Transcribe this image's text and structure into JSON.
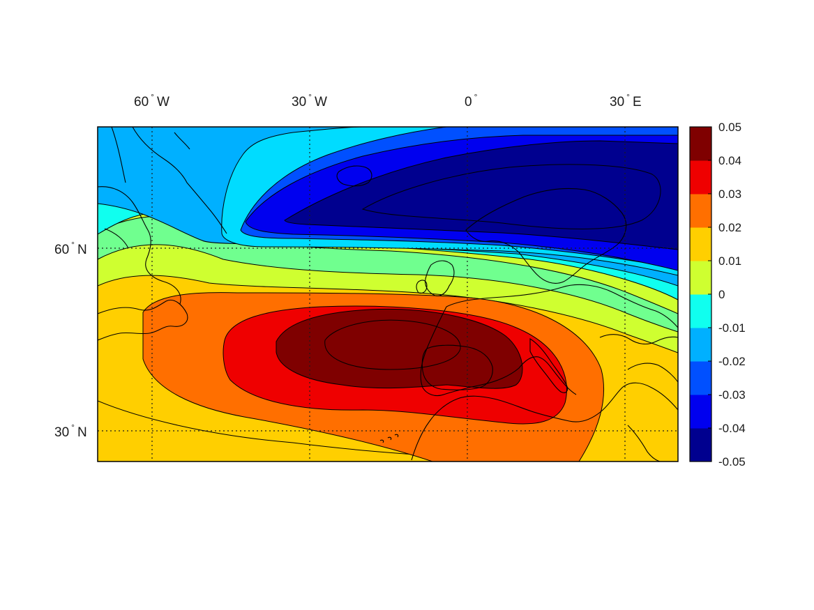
{
  "chart_data": {
    "type": "heatmap",
    "title": "",
    "projection": "equidistant cylindrical",
    "lon_range": [
      -70,
      40
    ],
    "lat_range": [
      25,
      80
    ],
    "x_ticks": [
      {
        "value": -60,
        "label": "60° W",
        "num": "60",
        "hemi": "W"
      },
      {
        "value": -30,
        "label": "30° W",
        "num": "30",
        "hemi": "W"
      },
      {
        "value": 0,
        "label": "0°",
        "num": "0",
        "hemi": ""
      },
      {
        "value": 30,
        "label": "30° E",
        "num": "30",
        "hemi": "E"
      }
    ],
    "y_ticks": [
      {
        "value": 60,
        "label": "60° N",
        "num": "60",
        "hemi": "N"
      },
      {
        "value": 30,
        "label": "30° N",
        "num": "30",
        "hemi": "N"
      }
    ],
    "grid": "dotted",
    "colormap": "jet",
    "colorbar": {
      "position": "right",
      "range": [
        -0.05,
        0.05
      ],
      "levels": [
        -0.05,
        -0.04,
        -0.03,
        -0.02,
        -0.01,
        0,
        0.01,
        0.02,
        0.03,
        0.04,
        0.05
      ],
      "tick_labels": [
        "-0.05",
        "-0.04",
        "-0.03",
        "-0.02",
        "-0.01",
        "0",
        "0.01",
        "0.02",
        "0.03",
        "0.04",
        "0.05"
      ],
      "colors": [
        "#00008f",
        "#0000ef",
        "#0050ff",
        "#00b0ff",
        "#10ffef",
        "#70ff8f",
        "#cfff30",
        "#ffcf00",
        "#ff6f00",
        "#ef0000",
        "#7f0000"
      ]
    },
    "features": [
      {
        "name": "negative anomaly center",
        "lon": 5,
        "lat": 70,
        "value": -0.05
      },
      {
        "name": "positive anomaly center",
        "lon": -20,
        "lat": 47,
        "value": 0.05
      }
    ],
    "coastlines": true
  }
}
